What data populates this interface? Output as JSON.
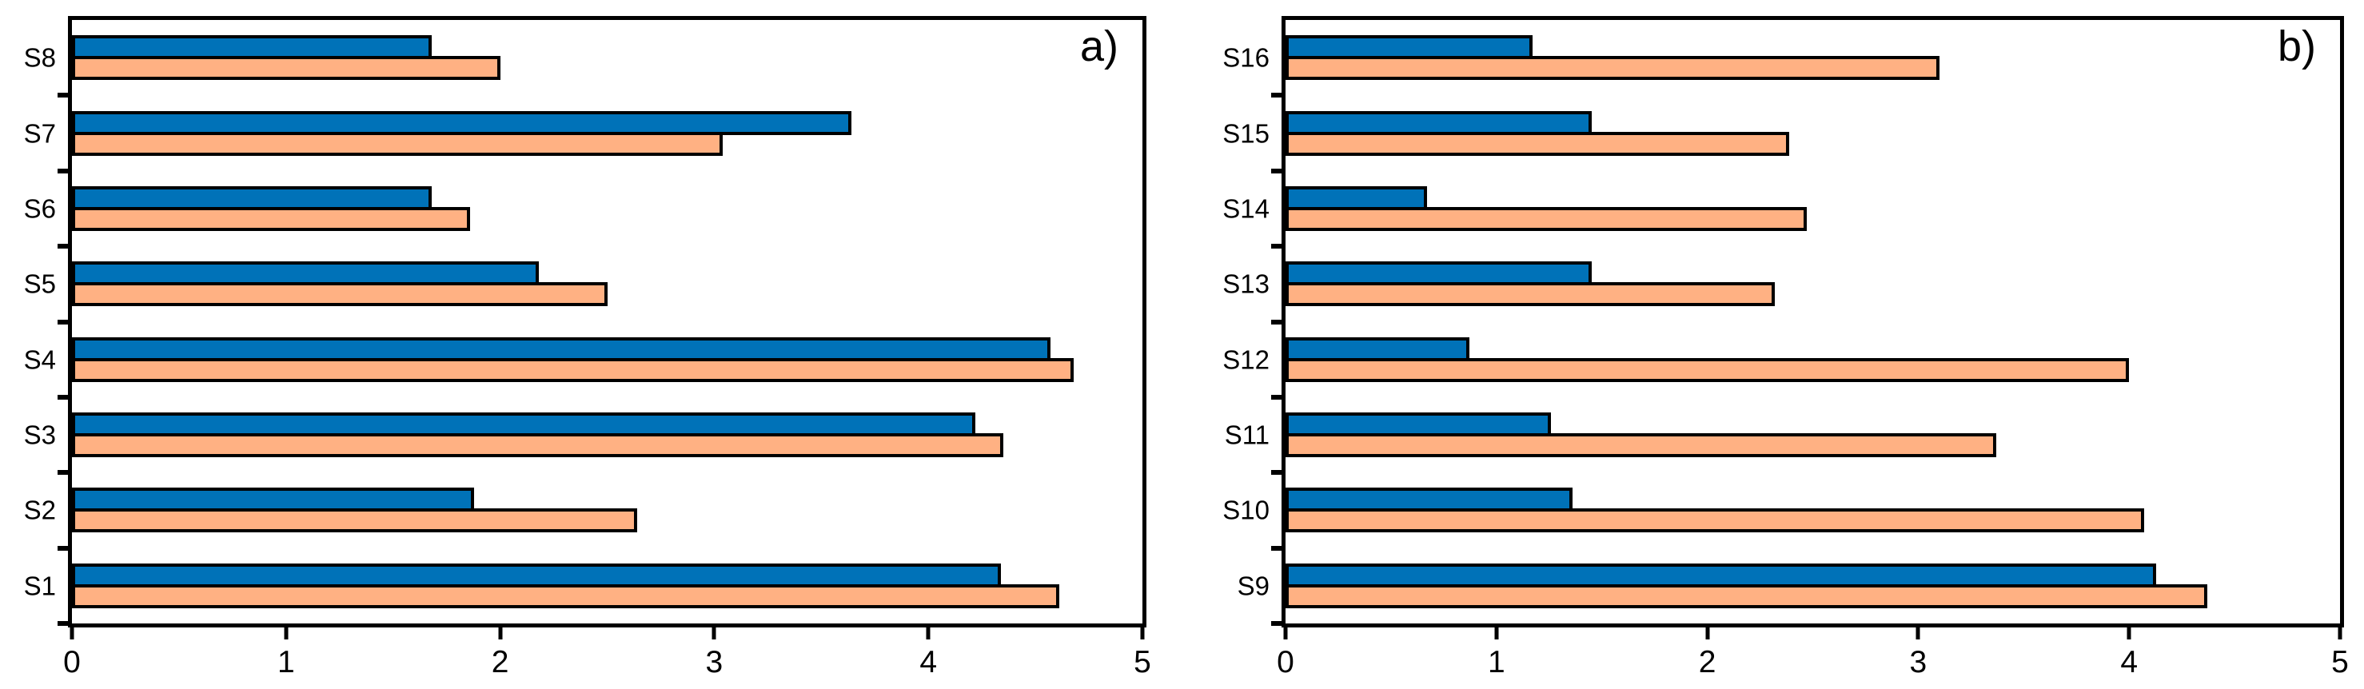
{
  "figure": {
    "background": "#ffffff",
    "outline_color": "#000000",
    "series_colors": {
      "blue": "#0072B8",
      "orange": "#FFB183"
    }
  },
  "chart_data": [
    {
      "type": "bar",
      "orientation": "horizontal",
      "title": "a)",
      "categories": [
        "S1",
        "S2",
        "S3",
        "S4",
        "S5",
        "S6",
        "S7",
        "S8"
      ],
      "category_display_order": "top-to-bottom reversed (S8 at top, S1 at bottom)",
      "series": [
        {
          "name": "series_blue",
          "color": "#0072B8",
          "values": [
            4.34,
            1.88,
            4.22,
            4.57,
            2.18,
            1.68,
            3.64,
            1.68
          ]
        },
        {
          "name": "series_orange",
          "color": "#FFB183",
          "values": [
            4.61,
            2.64,
            4.35,
            4.68,
            2.5,
            1.86,
            3.04,
            2.0
          ]
        }
      ],
      "xlabel": "",
      "ylabel": "",
      "xlim": [
        0,
        5
      ],
      "xticks": [
        "0",
        "1",
        "2",
        "3",
        "4",
        "5"
      ],
      "grid": false,
      "legend": "none"
    },
    {
      "type": "bar",
      "orientation": "horizontal",
      "title": "b)",
      "categories": [
        "S9",
        "S10",
        "S11",
        "S12",
        "S13",
        "S14",
        "S15",
        "S16"
      ],
      "category_display_order": "top-to-bottom reversed (S16 at top, S9 at bottom)",
      "series": [
        {
          "name": "series_blue",
          "color": "#0072B8",
          "values": [
            4.13,
            1.36,
            1.26,
            0.87,
            1.45,
            0.67,
            1.45,
            1.17
          ]
        },
        {
          "name": "series_orange",
          "color": "#FFB183",
          "values": [
            4.37,
            4.07,
            3.37,
            4.0,
            2.32,
            2.47,
            2.39,
            3.1
          ]
        }
      ],
      "xlabel": "",
      "ylabel": "",
      "xlim": [
        0,
        5
      ],
      "xticks": [
        "0",
        "1",
        "2",
        "3",
        "4",
        "5"
      ],
      "grid": false,
      "legend": "none"
    }
  ]
}
